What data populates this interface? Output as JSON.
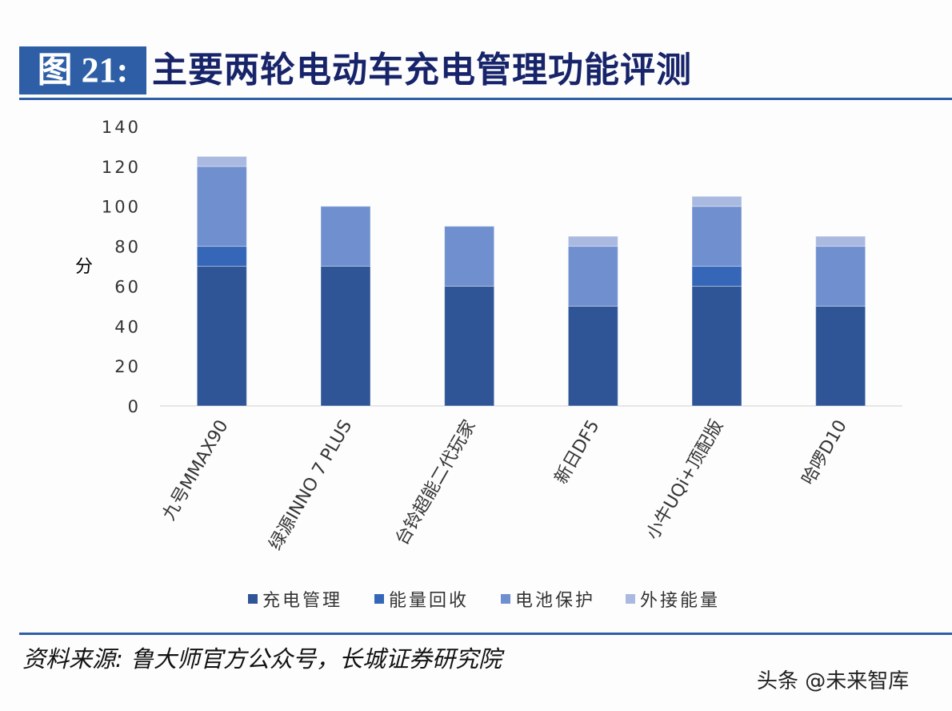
{
  "figure_label": "图 21:",
  "title": "主要两轮电动车充电管理功能评测",
  "source": "资料来源: 鲁大师官方公众号，长城证券研究院",
  "watermark": "头条 @未来智库",
  "chart_data": {
    "type": "bar",
    "stacked": true,
    "ylabel": "分",
    "ylim": [
      0,
      140
    ],
    "yticks": [
      0,
      20,
      40,
      60,
      80,
      100,
      120,
      140
    ],
    "grid": false,
    "legend_position": "bottom",
    "categories": [
      "九号MMAX90",
      "绿源INNO 7 PLUS",
      "台铃超能二代玩家",
      "新日DF5",
      "小牛UQi+顶配版",
      "哈啰D10"
    ],
    "series": [
      {
        "name": "充电管理",
        "color": "#2f5597",
        "values": [
          70,
          70,
          60,
          50,
          60,
          50
        ]
      },
      {
        "name": "能量回收",
        "color": "#3566b8",
        "values": [
          10,
          0,
          0,
          0,
          10,
          0
        ]
      },
      {
        "name": "电池保护",
        "color": "#6f8fcf",
        "values": [
          40,
          30,
          30,
          30,
          30,
          30
        ]
      },
      {
        "name": "外接能量",
        "color": "#a9b9e0",
        "values": [
          5,
          0,
          0,
          5,
          5,
          5
        ]
      }
    ]
  }
}
